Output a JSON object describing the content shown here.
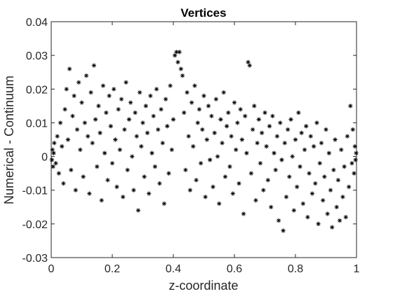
{
  "chart_data": {
    "type": "scatter",
    "title": "Vertices",
    "xlabel": "z-coordinate",
    "ylabel": "Numerical - Continuum",
    "xlim": [
      0,
      1
    ],
    "ylim": [
      -0.03,
      0.04
    ],
    "xticks": [
      0,
      0.2,
      0.4,
      0.6,
      0.8,
      1
    ],
    "xtick_labels": [
      "0",
      "0.2",
      "0.4",
      "0.6",
      "0.8",
      "1"
    ],
    "yticks": [
      -0.03,
      -0.02,
      -0.01,
      0,
      0.01,
      0.02,
      0.03,
      0.04
    ],
    "ytick_labels": [
      "-0.03",
      "-0.02",
      "-0.01",
      "0",
      "0.01",
      "0.02",
      "0.03",
      "0.04"
    ],
    "grid": false,
    "legend": "none",
    "marker": "asterisk",
    "marker_color": "#000000",
    "series": [
      {
        "points": [
          [
            0.002,
            -0.001
          ],
          [
            0.004,
            0.002
          ],
          [
            0.006,
            -0.003
          ],
          [
            0.008,
            0.001
          ],
          [
            0.01,
            0.004
          ],
          [
            0.015,
            -0.002
          ],
          [
            0.02,
            0.006
          ],
          [
            0.025,
            -0.005
          ],
          [
            0.03,
            0.01
          ],
          [
            0.035,
            0.003
          ],
          [
            0.04,
            -0.008
          ],
          [
            0.045,
            0.014
          ],
          [
            0.05,
            0.02
          ],
          [
            0.055,
            0.005
          ],
          [
            0.06,
            0.026
          ],
          [
            0.065,
            -0.004
          ],
          [
            0.07,
            0.012
          ],
          [
            0.075,
            0.018
          ],
          [
            0.08,
            -0.01
          ],
          [
            0.085,
            0.008
          ],
          [
            0.09,
            0.022
          ],
          [
            0.095,
            0.002
          ],
          [
            0.1,
            0.016
          ],
          [
            0.105,
            -0.006
          ],
          [
            0.11,
            0.01
          ],
          [
            0.115,
            0.024
          ],
          [
            0.12,
            0.006
          ],
          [
            0.125,
            -0.011
          ],
          [
            0.13,
            0.019
          ],
          [
            0.135,
            0.004
          ],
          [
            0.14,
            0.027
          ],
          [
            0.145,
            0.011
          ],
          [
            0.15,
            -0.003
          ],
          [
            0.155,
            0.015
          ],
          [
            0.16,
            0.007
          ],
          [
            0.165,
            -0.013
          ],
          [
            0.17,
            0.021
          ],
          [
            0.175,
            0.001
          ],
          [
            0.18,
            0.013
          ],
          [
            0.185,
            -0.007
          ],
          [
            0.19,
            0.018
          ],
          [
            0.195,
            0.009
          ],
          [
            0.2,
            -0.002
          ],
          [
            0.205,
            0.02
          ],
          [
            0.21,
            0.005
          ],
          [
            0.215,
            -0.009
          ],
          [
            0.22,
            0.014
          ],
          [
            0.225,
            0.002
          ],
          [
            0.23,
            0.017
          ],
          [
            0.235,
            -0.012
          ],
          [
            0.24,
            0.008
          ],
          [
            0.245,
            0.022
          ],
          [
            0.25,
            -0.004
          ],
          [
            0.255,
            0.011
          ],
          [
            0.26,
            0.016
          ],
          [
            0.265,
            0.0
          ],
          [
            0.27,
            -0.01
          ],
          [
            0.275,
            0.013
          ],
          [
            0.28,
            0.006
          ],
          [
            0.285,
            -0.016
          ],
          [
            0.29,
            0.019
          ],
          [
            0.295,
            0.003
          ],
          [
            0.3,
            0.01
          ],
          [
            0.305,
            -0.006
          ],
          [
            0.31,
            0.015
          ],
          [
            0.315,
            0.007
          ],
          [
            0.32,
            -0.011
          ],
          [
            0.325,
            0.018
          ],
          [
            0.33,
            0.001
          ],
          [
            0.335,
            0.012
          ],
          [
            0.34,
            -0.003
          ],
          [
            0.345,
            0.02
          ],
          [
            0.35,
            0.008
          ],
          [
            0.355,
            -0.008
          ],
          [
            0.36,
            0.014
          ],
          [
            0.365,
            0.004
          ],
          [
            0.37,
            -0.014
          ],
          [
            0.375,
            0.017
          ],
          [
            0.38,
            0.009
          ],
          [
            0.385,
            -0.005
          ],
          [
            0.39,
            0.021
          ],
          [
            0.395,
            0.002
          ],
          [
            0.4,
            0.011
          ],
          [
            0.405,
            0.03
          ],
          [
            0.41,
            0.031
          ],
          [
            0.415,
            0.028
          ],
          [
            0.42,
            0.031
          ],
          [
            0.425,
            0.026
          ],
          [
            0.43,
            0.024
          ],
          [
            0.435,
            0.013
          ],
          [
            0.44,
            -0.004
          ],
          [
            0.445,
            0.019
          ],
          [
            0.45,
            0.006
          ],
          [
            0.455,
            -0.01
          ],
          [
            0.46,
            0.016
          ],
          [
            0.465,
            0.003
          ],
          [
            0.47,
            0.021
          ],
          [
            0.475,
            -0.007
          ],
          [
            0.48,
            0.01
          ],
          [
            0.485,
            0.014
          ],
          [
            0.49,
            -0.002
          ],
          [
            0.495,
            0.008
          ],
          [
            0.5,
            0.018
          ],
          [
            0.505,
            -0.012
          ],
          [
            0.51,
            0.005
          ],
          [
            0.515,
            0.015
          ],
          [
            0.52,
            -0.001
          ],
          [
            0.525,
            0.012
          ],
          [
            0.53,
            -0.009
          ],
          [
            0.535,
            0.007
          ],
          [
            0.54,
            0.017
          ],
          [
            0.545,
            0.0
          ],
          [
            0.55,
            -0.014
          ],
          [
            0.555,
            0.011
          ],
          [
            0.56,
            0.004
          ],
          [
            0.565,
            0.019
          ],
          [
            0.57,
            -0.006
          ],
          [
            0.575,
            0.009
          ],
          [
            0.58,
            0.013
          ],
          [
            0.585,
            -0.003
          ],
          [
            0.59,
            0.006
          ],
          [
            0.595,
            -0.011
          ],
          [
            0.6,
            0.016
          ],
          [
            0.605,
            0.002
          ],
          [
            0.61,
            0.01
          ],
          [
            0.615,
            -0.008
          ],
          [
            0.62,
            0.014
          ],
          [
            0.625,
            0.005
          ],
          [
            0.63,
            -0.017
          ],
          [
            0.635,
            0.012
          ],
          [
            0.64,
            0.001
          ],
          [
            0.645,
            0.028
          ],
          [
            0.65,
            0.027
          ],
          [
            0.655,
            -0.005
          ],
          [
            0.66,
            0.008
          ],
          [
            0.665,
            0.015
          ],
          [
            0.67,
            -0.013
          ],
          [
            0.675,
            0.004
          ],
          [
            0.68,
            0.011
          ],
          [
            0.685,
            -0.002
          ],
          [
            0.69,
            0.007
          ],
          [
            0.695,
            -0.01
          ],
          [
            0.7,
            0.013
          ],
          [
            0.705,
            0.003
          ],
          [
            0.71,
            -0.007
          ],
          [
            0.715,
            0.009
          ],
          [
            0.72,
            -0.015
          ],
          [
            0.725,
            0.012
          ],
          [
            0.73,
            0.001
          ],
          [
            0.735,
            -0.004
          ],
          [
            0.74,
            0.006
          ],
          [
            0.745,
            -0.019
          ],
          [
            0.75,
            0.01
          ],
          [
            0.755,
            -0.001
          ],
          [
            0.76,
            -0.022
          ],
          [
            0.765,
            0.004
          ],
          [
            0.77,
            -0.012
          ],
          [
            0.775,
            0.008
          ],
          [
            0.78,
            -0.006
          ],
          [
            0.785,
            0.011
          ],
          [
            0.79,
            0.0
          ],
          [
            0.795,
            -0.016
          ],
          [
            0.8,
            0.005
          ],
          [
            0.805,
            -0.009
          ],
          [
            0.81,
            0.013
          ],
          [
            0.815,
            -0.003
          ],
          [
            0.82,
            0.007
          ],
          [
            0.825,
            -0.014
          ],
          [
            0.83,
            0.002
          ],
          [
            0.835,
            0.009
          ],
          [
            0.84,
            -0.018
          ],
          [
            0.845,
            -0.005
          ],
          [
            0.85,
            0.006
          ],
          [
            0.855,
            -0.011
          ],
          [
            0.86,
            0.003
          ],
          [
            0.865,
            -0.008
          ],
          [
            0.87,
            0.01
          ],
          [
            0.875,
            -0.02
          ],
          [
            0.88,
            -0.002
          ],
          [
            0.885,
            0.004
          ],
          [
            0.89,
            -0.013
          ],
          [
            0.895,
            -0.006
          ],
          [
            0.9,
            0.008
          ],
          [
            0.905,
            -0.017
          ],
          [
            0.91,
            0.001
          ],
          [
            0.915,
            -0.01
          ],
          [
            0.92,
            -0.021
          ],
          [
            0.925,
            -0.004
          ],
          [
            0.93,
            0.005
          ],
          [
            0.935,
            -0.015
          ],
          [
            0.94,
            -0.007
          ],
          [
            0.945,
            -0.019
          ],
          [
            0.95,
            0.002
          ],
          [
            0.955,
            -0.012
          ],
          [
            0.96,
            -0.003
          ],
          [
            0.965,
            -0.018
          ],
          [
            0.97,
            0.006
          ],
          [
            0.975,
            -0.009
          ],
          [
            0.98,
            0.015
          ],
          [
            0.985,
            -0.002
          ],
          [
            0.988,
            0.008
          ],
          [
            0.992,
            -0.005
          ],
          [
            0.995,
            0.003
          ],
          [
            0.997,
            -0.001
          ],
          [
            0.999,
            0.001
          ]
        ]
      }
    ]
  }
}
